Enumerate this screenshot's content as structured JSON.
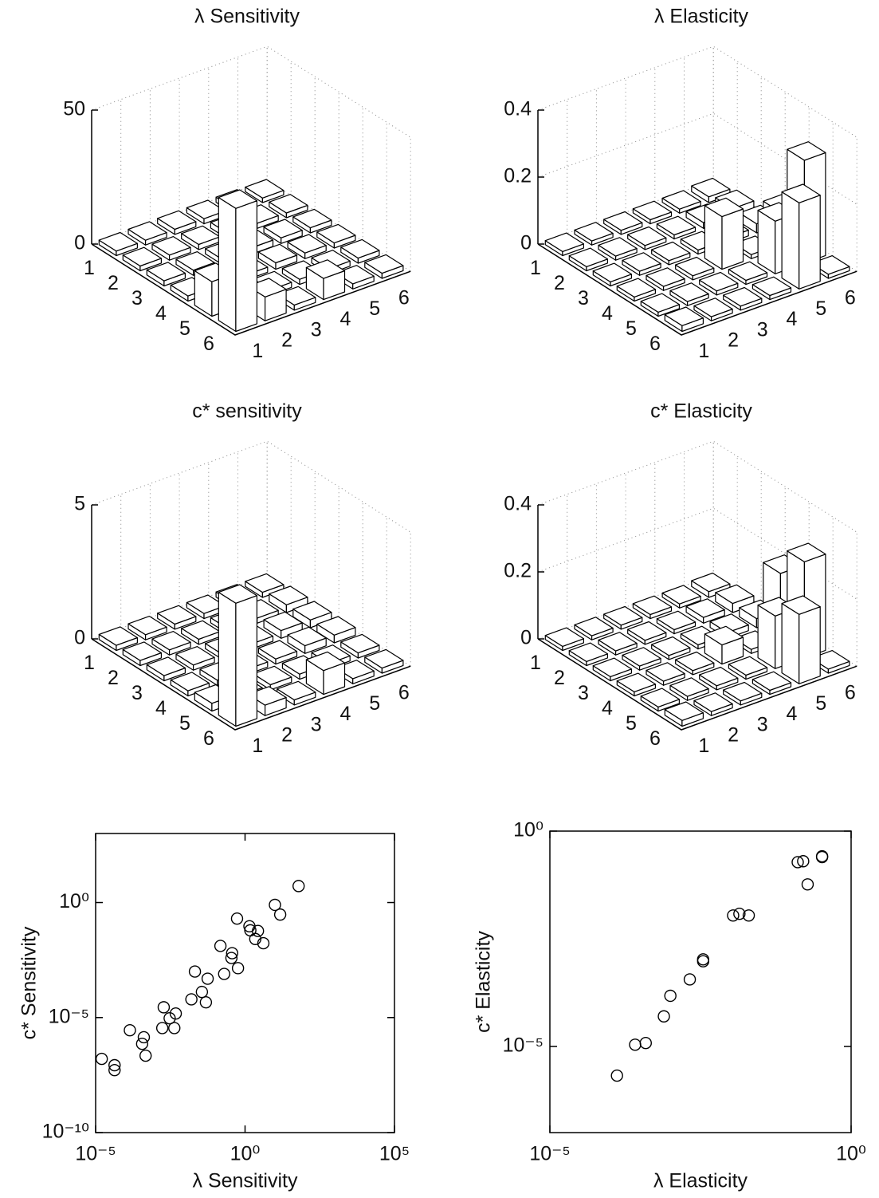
{
  "chart_data": [
    {
      "type": "bar3d",
      "title": "λ Sensitivity",
      "row_labels": [
        1,
        2,
        3,
        4,
        5,
        6
      ],
      "column_labels": [
        1,
        2,
        3,
        4,
        5,
        6
      ],
      "values": [
        [
          0.8,
          0.9,
          1,
          1,
          1,
          0.8
        ],
        [
          0.9,
          1,
          1,
          1.2,
          1,
          0.9
        ],
        [
          1,
          1,
          1,
          1.5,
          1.2,
          1
        ],
        [
          1,
          1.2,
          1,
          1.5,
          1.2,
          1
        ],
        [
          12,
          1,
          1,
          1,
          1,
          1
        ],
        [
          45,
          8,
          1,
          7,
          1,
          1
        ]
      ],
      "zlim": [
        0,
        50
      ],
      "zticks": [
        0,
        50
      ],
      "grid": true,
      "color": "#ffffff"
    },
    {
      "type": "bar3d",
      "title": "λ Elasticity",
      "row_labels": [
        1,
        2,
        3,
        4,
        5,
        6
      ],
      "column_labels": [
        1,
        2,
        3,
        4,
        5,
        6
      ],
      "values": [
        [
          0.005,
          0.005,
          0.005,
          0.005,
          0.005,
          0.01
        ],
        [
          0.005,
          0.005,
          0.005,
          0.005,
          0.01,
          0.02
        ],
        [
          0.005,
          0.005,
          0.005,
          0.005,
          0.01,
          0.02
        ],
        [
          0.005,
          0.005,
          0.005,
          0.15,
          0.005,
          0.1
        ],
        [
          0.005,
          0.005,
          0.005,
          0.005,
          0.15,
          0.3
        ],
        [
          0.01,
          0.005,
          0.005,
          0.005,
          0.25,
          0.005
        ]
      ],
      "zlim": [
        0,
        0.4
      ],
      "zticks": [
        0,
        0.2,
        0.4
      ],
      "grid": true,
      "color": "#ffffff"
    },
    {
      "type": "bar3d",
      "title": "c* sensitivity",
      "row_labels": [
        1,
        2,
        3,
        4,
        5,
        6
      ],
      "column_labels": [
        1,
        2,
        3,
        4,
        5,
        6
      ],
      "values": [
        [
          0.1,
          0.1,
          0.1,
          0.1,
          0.1,
          0.1
        ],
        [
          0.1,
          0.1,
          0.1,
          0.1,
          0.1,
          0.2
        ],
        [
          0.1,
          0.1,
          0.1,
          0.1,
          0.2,
          0.2
        ],
        [
          0.1,
          0.1,
          0.1,
          0.1,
          0.2,
          0.2
        ],
        [
          0.2,
          0.1,
          0.1,
          0.1,
          0.1,
          0.1
        ],
        [
          4.5,
          0.3,
          0.1,
          0.8,
          0.1,
          0.1
        ]
      ],
      "zlim": [
        0,
        5
      ],
      "zticks": [
        0,
        5
      ],
      "grid": true,
      "color": "#ffffff"
    },
    {
      "type": "bar3d",
      "title": "c* Elasticity",
      "row_labels": [
        1,
        2,
        3,
        4,
        5,
        6
      ],
      "column_labels": [
        1,
        2,
        3,
        4,
        5,
        6
      ],
      "values": [
        [
          0.005,
          0.005,
          0.005,
          0.005,
          0.005,
          0.01
        ],
        [
          0.005,
          0.005,
          0.005,
          0.005,
          0.01,
          0.02
        ],
        [
          0.005,
          0.005,
          0.005,
          0.005,
          0.01,
          0.02
        ],
        [
          0.005,
          0.005,
          0.005,
          0.05,
          0.005,
          0.2
        ],
        [
          0.005,
          0.005,
          0.005,
          0.005,
          0.15,
          0.28
        ],
        [
          0.01,
          0.005,
          0.005,
          0.005,
          0.2,
          0.005
        ]
      ],
      "zlim": [
        0,
        0.4
      ],
      "zticks": [
        0,
        0.2,
        0.4
      ],
      "grid": true,
      "color": "#ffffff"
    },
    {
      "type": "scatter",
      "xlabel": "λ Sensitivity",
      "ylabel": "c* Sensitivity",
      "xscale": "log",
      "yscale": "log",
      "x": [
        1.6e-05,
        4.3e-05,
        4.3e-05,
        0.00014,
        0.00036,
        0.00041,
        0.00047,
        0.0019,
        0.0017,
        0.003,
        0.0048,
        0.0043,
        0.016,
        0.021,
        0.036,
        0.056,
        0.049,
        0.15,
        0.2,
        0.37,
        0.35,
        0.58,
        0.54,
        1.4,
        1.5,
        2.2,
        2.7,
        4.1,
        10,
        15,
        62
      ],
      "y": [
        1.6e-07,
        8.5e-08,
        5.2e-08,
        2.8e-06,
        7.2e-07,
        1.4e-06,
        2.2e-07,
        2.8e-05,
        3.5e-06,
        9.3e-06,
        1.5e-05,
        3.5e-06,
        6.2e-05,
        0.001,
        0.00013,
        0.00049,
        4.6e-05,
        0.013,
        0.00079,
        0.0063,
        0.0039,
        0.0014,
        0.2,
        0.093,
        0.062,
        0.026,
        0.058,
        0.017,
        0.79,
        0.3,
        5.2
      ],
      "xlim": [
        1e-05,
        100000.0
      ],
      "ylim": [
        1e-10,
        1000.0
      ],
      "xticks": [
        {
          "value": 1e-05,
          "label": "10⁻⁵"
        },
        {
          "value": 1,
          "label": "10⁰"
        },
        {
          "value": 100000.0,
          "label": "10⁵"
        }
      ],
      "yticks": [
        {
          "value": 1e-10,
          "label": "10⁻¹⁰"
        },
        {
          "value": 1e-05,
          "label": "10⁻⁵"
        },
        {
          "value": 1,
          "label": "10⁰"
        }
      ],
      "color": "#000000"
    },
    {
      "type": "scatter",
      "xlabel": "λ Elasticity",
      "ylabel": "c* Elasticity",
      "xscale": "log",
      "yscale": "log",
      "x": [
        0.00013,
        0.00026,
        0.00039,
        0.00078,
        0.001,
        0.0021,
        0.0035,
        0.0035,
        0.011,
        0.014,
        0.02,
        0.13,
        0.16,
        0.19,
        0.33,
        0.33
      ],
      "y": [
        2.1e-06,
        1.1e-05,
        1.2e-05,
        5e-05,
        0.00015,
        0.00036,
        0.00095,
        0.00105,
        0.011,
        0.012,
        0.011,
        0.19,
        0.2,
        0.058,
        0.25,
        0.26
      ],
      "xlim": [
        1e-05,
        1
      ],
      "ylim": [
        1e-07,
        1
      ],
      "xticks": [
        {
          "value": 1e-05,
          "label": "10⁻⁵"
        },
        {
          "value": 1,
          "label": "10⁰"
        }
      ],
      "yticks": [
        {
          "value": 1e-05,
          "label": "10⁻⁵"
        },
        {
          "value": 1,
          "label": "10⁰"
        }
      ],
      "color": "#000000"
    }
  ]
}
